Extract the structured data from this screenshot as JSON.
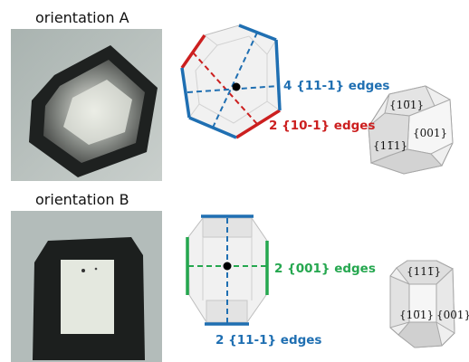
{
  "panel_a": {
    "heading": "orientation A",
    "edge_label_blue": "4 {11-1} edges",
    "edge_label_red": "2 {10-1} edges",
    "facets": {
      "top": "{10̅1}",
      "center": "{001}",
      "left": "{11̅1}"
    }
  },
  "panel_b": {
    "heading": "orientation B",
    "edge_label_green": "2 {001} edges",
    "edge_label_blue": "2 {11-1} edges",
    "facets": {
      "top": "{111̅}",
      "center": "{10̅1}",
      "right": "{001}"
    }
  },
  "colors": {
    "blue": "#1f6fb2",
    "red": "#cc1f1f",
    "green": "#25a74f",
    "crystal_fill": "#e6e6e6",
    "crystal_edge": "#9a9a9a"
  }
}
